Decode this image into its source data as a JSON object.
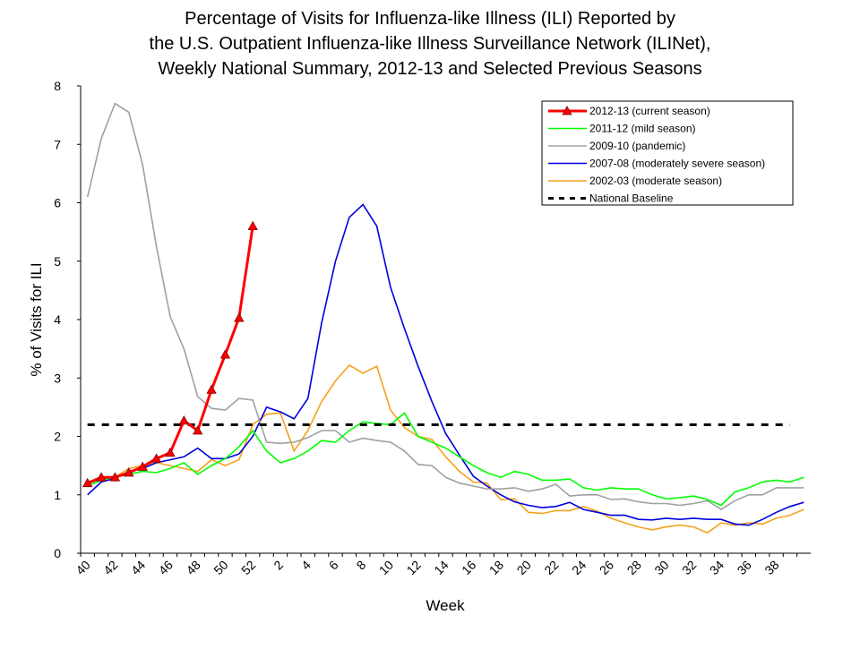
{
  "chart_data": {
    "type": "line",
    "title": [
      "Percentage of Visits for Influenza-like Illness (ILI) Reported by",
      "the U.S. Outpatient Influenza-like Illness Surveillance Network (ILINet),",
      "Weekly National Summary, 2012-13 and Selected Previous Seasons"
    ],
    "x_label": "Week",
    "y_label": "% of Visits for ILI",
    "categories": [
      40,
      null,
      42,
      null,
      44,
      null,
      46,
      null,
      48,
      null,
      50,
      null,
      52,
      null,
      2,
      null,
      4,
      null,
      6,
      null,
      8,
      null,
      10,
      null,
      12,
      null,
      14,
      null,
      16,
      null,
      18,
      null,
      20,
      null,
      22,
      null,
      24,
      null,
      26,
      null,
      28,
      null,
      30,
      null,
      32,
      null,
      34,
      null,
      36,
      null,
      38,
      null,
      null
    ],
    "ylim": [
      0,
      8
    ],
    "yticks": [
      0,
      1,
      2,
      3,
      4,
      5,
      6,
      7,
      8
    ],
    "series": [
      {
        "name": "2012-13 (current season)",
        "color": "#ff0000",
        "marker": "triangle",
        "values": [
          1.2,
          1.3,
          1.3,
          1.38,
          1.48,
          1.62,
          1.72,
          2.27,
          2.1,
          2.8,
          3.4,
          4.03,
          5.6,
          null,
          null,
          null,
          null,
          null,
          null,
          null,
          null,
          null,
          null,
          null,
          null,
          null,
          null,
          null,
          null,
          null,
          null,
          null,
          null,
          null,
          null,
          null,
          null,
          null,
          null,
          null,
          null,
          null,
          null,
          null,
          null,
          null,
          null,
          null,
          null,
          null,
          null,
          null,
          null
        ]
      },
      {
        "name": "2011-12 (mild season)",
        "color": "#00ff00",
        "values": [
          1.15,
          1.25,
          1.3,
          1.35,
          1.4,
          1.38,
          1.45,
          1.55,
          1.35,
          1.5,
          1.62,
          1.82,
          2.1,
          1.75,
          1.55,
          1.62,
          1.75,
          1.93,
          1.9,
          2.1,
          2.25,
          2.22,
          2.2,
          2.4,
          2.0,
          1.9,
          1.8,
          1.65,
          1.5,
          1.38,
          1.3,
          1.4,
          1.35,
          1.25,
          1.25,
          1.27,
          1.12,
          1.08,
          1.12,
          1.1,
          1.1,
          1.0,
          0.93,
          0.95,
          0.98,
          0.92,
          0.82,
          1.05,
          1.12,
          1.22,
          1.25,
          1.22,
          1.3
        ]
      },
      {
        "name": "2009-10 (pandemic)",
        "color": "#a0a0a0",
        "values": [
          6.1,
          7.1,
          7.7,
          7.55,
          6.65,
          5.25,
          4.05,
          3.5,
          2.68,
          2.48,
          2.45,
          2.65,
          2.62,
          1.9,
          1.88,
          1.9,
          1.98,
          2.1,
          2.1,
          1.9,
          1.97,
          1.93,
          1.9,
          1.75,
          1.52,
          1.5,
          1.3,
          1.2,
          1.15,
          1.1,
          1.1,
          1.12,
          1.06,
          1.1,
          1.18,
          0.98,
          1.0,
          1.0,
          0.92,
          0.93,
          0.88,
          0.85,
          0.85,
          0.82,
          0.85,
          0.9,
          0.75,
          0.9,
          1.0,
          1.0,
          1.12,
          1.12,
          1.12
        ]
      },
      {
        "name": "2007-08 (moderately severe season)",
        "color": "#0000dd",
        "values": [
          1.0,
          1.22,
          1.28,
          1.4,
          1.45,
          1.55,
          1.6,
          1.65,
          1.8,
          1.62,
          1.62,
          1.7,
          2.0,
          2.5,
          2.42,
          2.3,
          2.65,
          3.95,
          5.0,
          5.75,
          5.97,
          5.6,
          4.55,
          3.85,
          3.2,
          2.6,
          2.05,
          1.68,
          1.32,
          1.15,
          1.0,
          0.88,
          0.82,
          0.78,
          0.8,
          0.87,
          0.75,
          0.7,
          0.65,
          0.65,
          0.58,
          0.57,
          0.6,
          0.58,
          0.6,
          0.58,
          0.58,
          0.5,
          0.48,
          0.58,
          0.7,
          0.8,
          0.87
        ]
      },
      {
        "name": "2002-03 (moderate season)",
        "color": "#f5a21d",
        "values": [
          1.2,
          1.25,
          1.3,
          1.45,
          1.5,
          1.55,
          1.5,
          1.45,
          1.4,
          1.6,
          1.5,
          1.6,
          2.2,
          2.38,
          2.4,
          1.75,
          2.1,
          2.6,
          2.95,
          3.22,
          3.08,
          3.2,
          2.45,
          2.15,
          2.0,
          1.95,
          1.65,
          1.4,
          1.22,
          1.2,
          0.92,
          0.93,
          0.7,
          0.68,
          0.73,
          0.73,
          0.8,
          0.72,
          0.6,
          0.52,
          0.45,
          0.4,
          0.45,
          0.48,
          0.45,
          0.35,
          0.52,
          0.48,
          0.52,
          0.5,
          0.6,
          0.65,
          0.75
        ]
      },
      {
        "name": "National Baseline",
        "color": "#000000",
        "dashed": true,
        "value": 2.2
      }
    ]
  }
}
